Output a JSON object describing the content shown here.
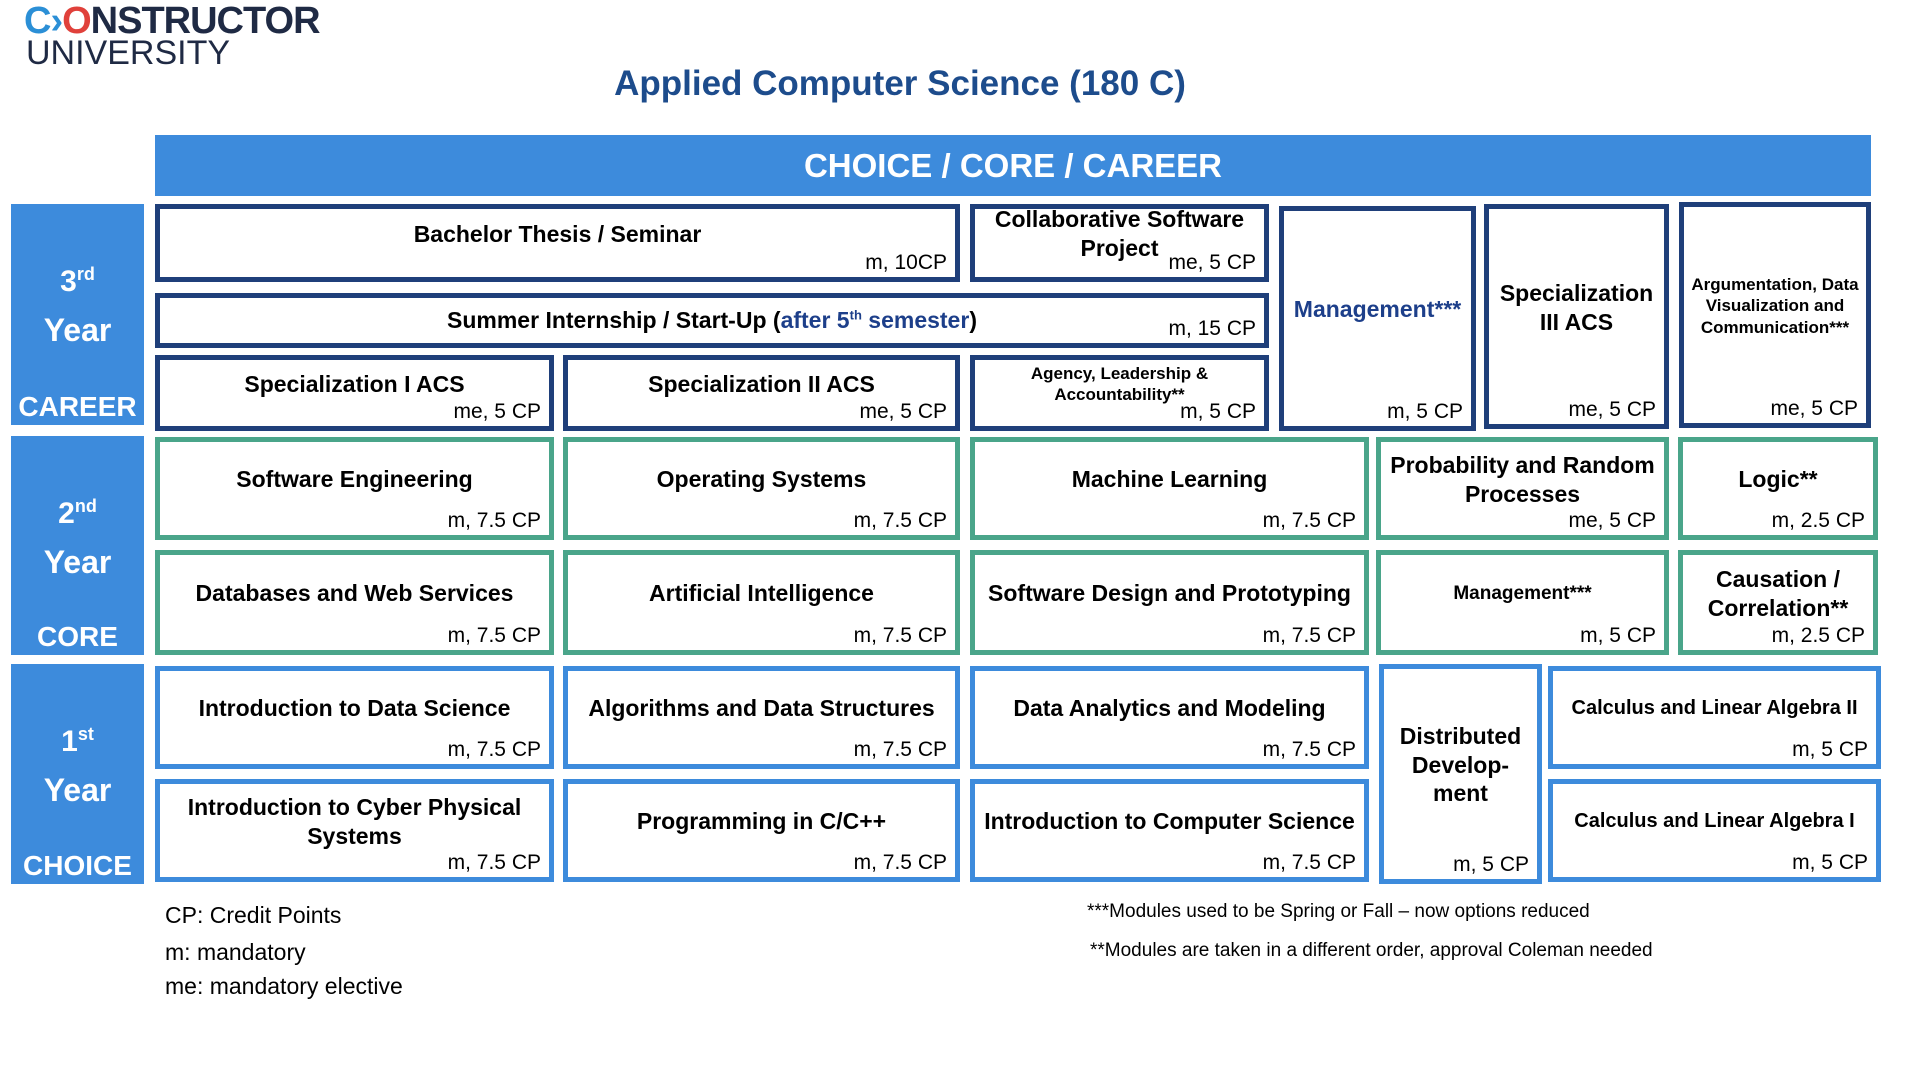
{
  "logo": {
    "line1_c": "C",
    "line1_arrow": "›",
    "line1_o": "O",
    "line1_rest": "NSTRUCTOR",
    "line2": "UNIVERSITY"
  },
  "title": "Applied Computer Science (180 C)",
  "banner": "CHOICE / CORE / CAREER",
  "colors": {
    "banner": "#3d8bdc",
    "career_border": "#1f3f7a",
    "core_border": "#4aa58a",
    "choice_border": "#3d8bdc",
    "title": "#1d4c8c"
  },
  "years": [
    {
      "num": "3",
      "sup": "rd",
      "label": "Year",
      "category": "CAREER"
    },
    {
      "num": "2",
      "sup": "nd",
      "label": "Year",
      "category": "CORE"
    },
    {
      "num": "1",
      "sup": "st",
      "label": "Year",
      "category": "CHOICE"
    }
  ],
  "internship": {
    "pre": "Summer Internship /  Start-Up (",
    "hl": "after 5",
    "sup": "th",
    "hl2": " semester",
    "post": ")",
    "credit": "m, 15 CP"
  },
  "modules": [
    {
      "title": "Bachelor Thesis / Seminar",
      "credit": "m, 10CP"
    },
    {
      "title": "Collaborative Software Project",
      "credit": "me, 5 CP"
    },
    {
      "title": "Specialization I ACS",
      "credit": "me, 5 CP"
    },
    {
      "title": "Specialization II ACS",
      "credit": "me, 5 CP"
    },
    {
      "title": "Agency, Leadership & Accountability**",
      "credit": "m, 5 CP"
    },
    {
      "title": "Management***",
      "credit": "m, 5 CP"
    },
    {
      "title": "Specialization III ACS",
      "credit": "me, 5 CP"
    },
    {
      "title": "Argumentation, Data Visualization and Communication***",
      "credit": "me, 5 CP"
    },
    {
      "title": "Software Engineering",
      "credit": "m, 7.5 CP"
    },
    {
      "title": "Operating Systems",
      "credit": "m, 7.5 CP"
    },
    {
      "title": "Machine Learning",
      "credit": "m, 7.5 CP"
    },
    {
      "title": "Probability and Random Processes",
      "credit": "me, 5 CP"
    },
    {
      "title": "Logic**",
      "credit": "m, 2.5 CP"
    },
    {
      "title": "Databases and Web Services",
      "credit": "m, 7.5 CP"
    },
    {
      "title": "Artificial Intelligence",
      "credit": "m, 7.5 CP"
    },
    {
      "title": "Software Design and Prototyping",
      "credit": "m, 7.5 CP"
    },
    {
      "title": "Management***",
      "credit": "m, 5 CP"
    },
    {
      "title": "Causation / Correlation**",
      "credit": "m, 2.5 CP"
    },
    {
      "title": "Introduction to Data Science",
      "credit": "m, 7.5 CP"
    },
    {
      "title": "Algorithms and Data Structures",
      "credit": "m, 7.5 CP"
    },
    {
      "title": "Data Analytics and Modeling",
      "credit": "m, 7.5 CP"
    },
    {
      "title": "Distributed Develop-ment",
      "credit": "m, 5 CP"
    },
    {
      "title": "Calculus and Linear Algebra II",
      "credit": "m, 5 CP"
    },
    {
      "title": "Introduction to Cyber Physical Systems",
      "credit": "m, 7.5 CP"
    },
    {
      "title": "Programming in C/C++",
      "credit": "m, 7.5 CP"
    },
    {
      "title": "Introduction to Computer Science",
      "credit": "m, 7.5 CP"
    },
    {
      "title": "Calculus and Linear Algebra  I",
      "credit": "m, 5 CP"
    }
  ],
  "legend": [
    "CP: Credit Points",
    "m:   mandatory",
    "me: mandatory elective"
  ],
  "notes": [
    "***Modules used to be Spring or Fall – now options reduced",
    "**Modules are taken in a different order, approval Coleman needed"
  ]
}
